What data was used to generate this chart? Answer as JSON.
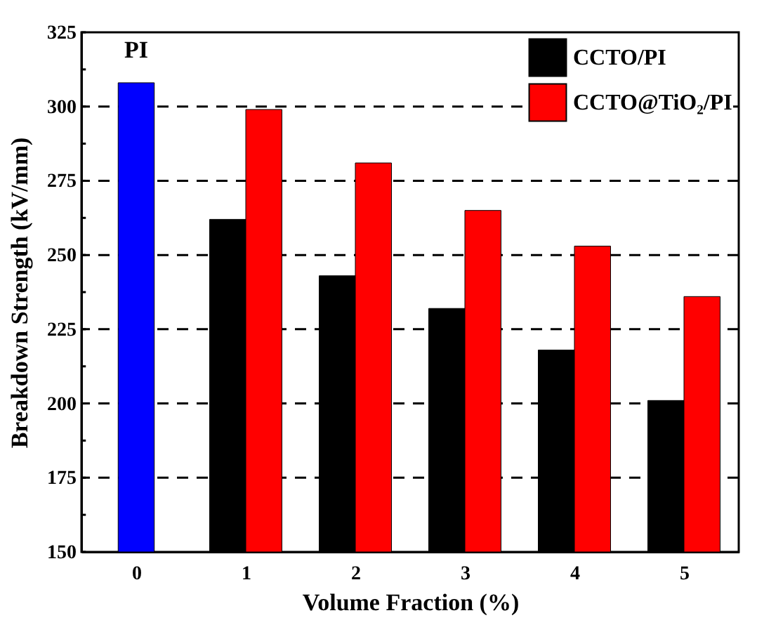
{
  "chart_data": {
    "type": "bar",
    "xlabel": "Volume Fraction (%)",
    "ylabel": "Breakdown Strength (kV/mm)",
    "categories": [
      "0",
      "1",
      "2",
      "3",
      "4",
      "5"
    ],
    "series": [
      {
        "color": "#0000ff",
        "values": [
          308,
          null,
          null,
          null,
          null,
          null
        ]
      },
      {
        "name": "CCTO/PI",
        "color": "#000000",
        "values": [
          null,
          262,
          243,
          232,
          218,
          201
        ]
      },
      {
        "name": "CCTO@TiO₂/PI",
        "color": "#ff0000",
        "values": [
          null,
          299,
          281,
          265,
          253,
          236
        ]
      }
    ],
    "annotations": [
      {
        "text": "PI",
        "x": "0",
        "y": 308
      }
    ],
    "ylim": [
      150,
      325
    ],
    "yticks": [
      150,
      {
        "value": 162.5,
        "label": null
      },
      175,
      {
        "value": 187.5,
        "label": null
      },
      200,
      {
        "value": 212.5,
        "label": null
      },
      225,
      {
        "value": 237.5,
        "label": null
      },
      250,
      {
        "value": 262.5,
        "label": null
      },
      275,
      {
        "value": 287.5,
        "label": null
      },
      300,
      {
        "value": 312.5,
        "label": null
      },
      325
    ],
    "grid": "y",
    "legend": "top right"
  }
}
